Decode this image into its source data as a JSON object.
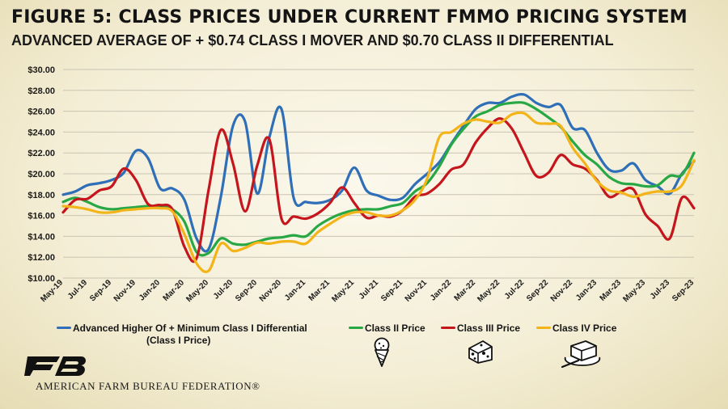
{
  "title": "FIGURE 5: CLASS PRICES UNDER CURRENT FMMO PRICING SYSTEM",
  "subtitle": "ADVANCED AVERAGE OF + $0.74 CLASS I MOVER AND $0.70 CLASS II DIFFERENTIAL",
  "organization": "AMERICAN FARM BUREAU FEDERATION®",
  "logo_text": "FB",
  "legend": [
    {
      "label": "Advanced Higher Of + Minimum Class I Differential",
      "label2": "(Class I Price)",
      "color": "#2f6fb7"
    },
    {
      "label": "Class II Price",
      "color": "#27a844",
      "icon": "ice-cream-icon"
    },
    {
      "label": "Class III Price",
      "color": "#c4161c",
      "icon": "cheese-icon"
    },
    {
      "label": "Class IV Price",
      "color": "#f2b418",
      "icon": "butter-icon"
    }
  ],
  "chart_data": {
    "type": "line",
    "x": [
      "May-19",
      "Jun-19",
      "Jul-19",
      "Aug-19",
      "Sep-19",
      "Oct-19",
      "Nov-19",
      "Dec-19",
      "Jan-20",
      "Feb-20",
      "Mar-20",
      "Apr-20",
      "May-20",
      "Jun-20",
      "Jul-20",
      "Aug-20",
      "Sep-20",
      "Oct-20",
      "Nov-20",
      "Dec-20",
      "Jan-21",
      "Feb-21",
      "Mar-21",
      "Apr-21",
      "May-21",
      "Jun-21",
      "Jul-21",
      "Aug-21",
      "Sep-21",
      "Oct-21",
      "Nov-21",
      "Dec-21",
      "Jan-22",
      "Feb-22",
      "Mar-22",
      "Apr-22",
      "May-22",
      "Jun-22",
      "Jul-22",
      "Aug-22",
      "Sep-22",
      "Oct-22",
      "Nov-22",
      "Dec-22",
      "Jan-23",
      "Feb-23",
      "Mar-23",
      "Apr-23",
      "May-23",
      "Jun-23",
      "Jul-23",
      "Aug-23",
      "Sep-23"
    ],
    "x_tick_labels": [
      "May-19",
      "Jul-19",
      "Sep-19",
      "Nov-19",
      "Jan-20",
      "Mar-20",
      "May-20",
      "Jul-20",
      "Sep-20",
      "Nov-20",
      "Jan-21",
      "Mar-21",
      "May-21",
      "Jul-21",
      "Sep-21",
      "Nov-21",
      "Jan-22",
      "Mar-22",
      "May-22",
      "Jul-22",
      "Sep-22",
      "Nov-22",
      "Jan-23",
      "Mar-23",
      "May-23",
      "Jul-23",
      "Sep-23"
    ],
    "y_tick_labels": [
      "$10.00",
      "$12.00",
      "$14.00",
      "$16.00",
      "$18.00",
      "$20.00",
      "$22.00",
      "$24.00",
      "$26.00",
      "$28.00",
      "$30.00"
    ],
    "ylim": [
      10,
      30
    ],
    "grid": true,
    "legend_position": "bottom",
    "series": [
      {
        "name": "Advanced Higher Of + Minimum Class I Differential (Class I Price)",
        "color": "#2f6fb7",
        "values": [
          18.0,
          18.3,
          18.9,
          19.1,
          19.4,
          20.1,
          22.2,
          21.5,
          18.6,
          18.6,
          17.5,
          13.8,
          12.8,
          17.8,
          24.6,
          25.0,
          18.1,
          23.5,
          26.2,
          17.7,
          17.3,
          17.2,
          17.5,
          18.4,
          20.6,
          18.4,
          17.9,
          17.5,
          17.7,
          19.0,
          20.0,
          21.1,
          22.9,
          24.6,
          26.2,
          26.8,
          26.8,
          27.4,
          27.6,
          26.8,
          26.4,
          26.6,
          24.4,
          24.2,
          22.0,
          20.4,
          20.3,
          21.0,
          19.4,
          18.8,
          18.1,
          20.0,
          21.2
        ]
      },
      {
        "name": "Class II Price",
        "color": "#27a844",
        "values": [
          17.3,
          17.7,
          17.3,
          16.8,
          16.6,
          16.7,
          16.8,
          16.9,
          16.9,
          16.6,
          15.4,
          12.5,
          12.4,
          13.8,
          13.3,
          13.2,
          13.5,
          13.8,
          13.9,
          14.1,
          14.0,
          15.0,
          15.7,
          16.2,
          16.5,
          16.6,
          16.6,
          16.9,
          17.2,
          18.3,
          19.1,
          20.7,
          22.8,
          24.3,
          25.5,
          26.0,
          26.6,
          26.8,
          26.8,
          26.2,
          25.4,
          24.5,
          23.1,
          21.8,
          20.9,
          19.7,
          19.1,
          19.0,
          18.8,
          18.9,
          19.8,
          19.9,
          22.0
        ]
      },
      {
        "name": "Class III Price",
        "color": "#c4161c",
        "values": [
          16.3,
          17.5,
          17.6,
          18.4,
          18.8,
          20.5,
          19.4,
          17.1,
          17.0,
          16.6,
          13.0,
          11.9,
          18.5,
          24.2,
          21.0,
          16.4,
          20.8,
          23.3,
          15.7,
          15.9,
          15.7,
          16.2,
          17.2,
          18.7,
          17.2,
          15.8,
          16.0,
          15.9,
          16.5,
          17.8,
          18.1,
          19.0,
          20.4,
          20.9,
          23.0,
          24.4,
          25.3,
          24.3,
          22.0,
          19.8,
          20.1,
          21.8,
          20.9,
          20.5,
          19.4,
          17.8,
          18.3,
          18.5,
          16.1,
          15.0,
          13.8,
          17.7,
          16.7
        ]
      },
      {
        "name": "Class IV Price",
        "color": "#f2b418",
        "values": [
          16.9,
          16.8,
          16.6,
          16.3,
          16.3,
          16.5,
          16.6,
          16.7,
          16.7,
          16.4,
          14.2,
          11.4,
          10.7,
          13.3,
          12.6,
          12.9,
          13.4,
          13.3,
          13.5,
          13.5,
          13.3,
          14.4,
          15.2,
          15.9,
          16.3,
          16.3,
          16.0,
          16.0,
          16.5,
          17.5,
          19.5,
          23.5,
          24.0,
          24.8,
          25.2,
          25.0,
          24.9,
          25.7,
          25.8,
          24.9,
          24.8,
          24.6,
          22.5,
          21.0,
          19.3,
          18.4,
          18.2,
          17.8,
          18.1,
          18.3,
          18.3,
          18.9,
          21.3
        ]
      }
    ]
  }
}
